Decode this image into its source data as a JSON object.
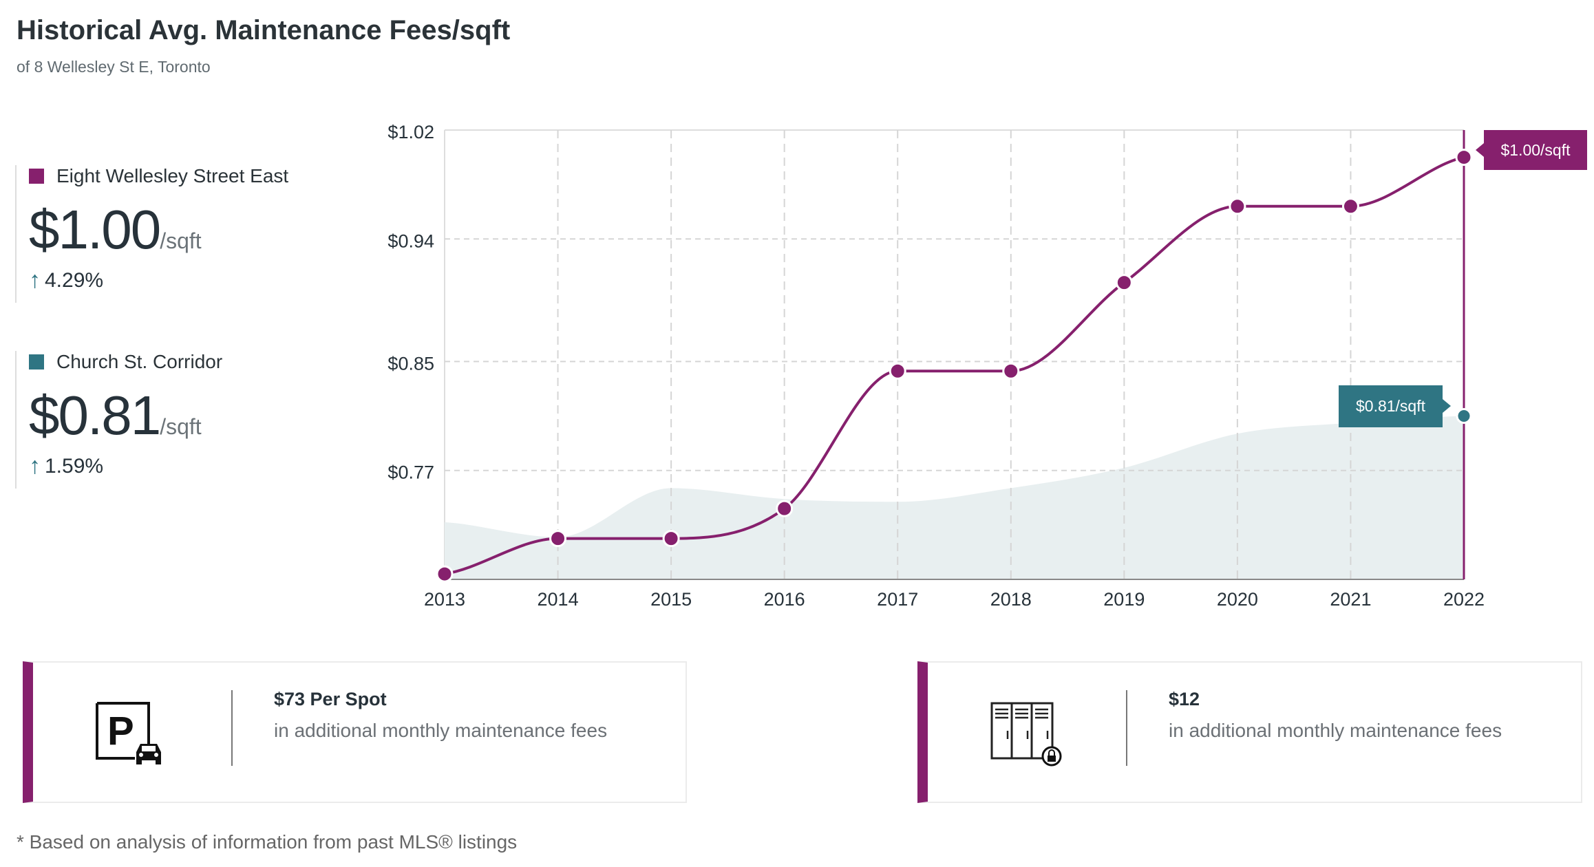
{
  "header": {
    "title": "Historical Avg. Maintenance Fees/sqft",
    "subtitle": "of 8 Wellesley St E, Toronto"
  },
  "legend": [
    {
      "name": "Eight Wellesley Street East",
      "value": "$1.00",
      "unit": "/sqft",
      "change": "4.29%",
      "change_direction": "up",
      "color": "#86206d"
    },
    {
      "name": "Church St. Corridor",
      "value": "$0.81",
      "unit": "/sqft",
      "change": "1.59%",
      "change_direction": "up",
      "color": "#2f7583"
    }
  ],
  "chart_data": {
    "type": "line",
    "categories": [
      "2013",
      "2014",
      "2015",
      "2016",
      "2017",
      "2018",
      "2019",
      "2020",
      "2021",
      "2022"
    ],
    "ylim": [
      0.69,
      1.02
    ],
    "yticks": [
      1.02,
      0.94,
      0.85,
      0.77
    ],
    "ytick_labels": [
      "$1.02",
      "$0.94",
      "$0.85",
      "$0.77"
    ],
    "grid": true,
    "series": [
      {
        "name": "Eight Wellesley Street East",
        "style": "line-with-markers",
        "color": "#86206d",
        "values": [
          0.694,
          0.72,
          0.72,
          0.742,
          0.843,
          0.843,
          0.908,
          0.964,
          0.964,
          1.0
        ]
      },
      {
        "name": "Church St. Corridor",
        "style": "area",
        "color": "#2f7583",
        "fill": "#e8eff0",
        "values": [
          0.732,
          0.721,
          0.757,
          0.749,
          0.747,
          0.757,
          0.772,
          0.797,
          0.805,
          0.81
        ]
      }
    ],
    "tooltips": [
      {
        "series": "Eight Wellesley Street East",
        "label": "$1.00/sqft"
      },
      {
        "series": "Church St. Corridor",
        "label": "$0.81/sqft"
      }
    ],
    "highlight_category": "2022"
  },
  "cards": [
    {
      "icon": "parking-icon",
      "heading": "$73 Per Spot",
      "description": "in additional monthly maintenance fees"
    },
    {
      "icon": "locker-icon",
      "heading": "$12",
      "description": "in additional monthly maintenance fees"
    }
  ],
  "footnote": "* Based on analysis of information from past MLS® listings"
}
